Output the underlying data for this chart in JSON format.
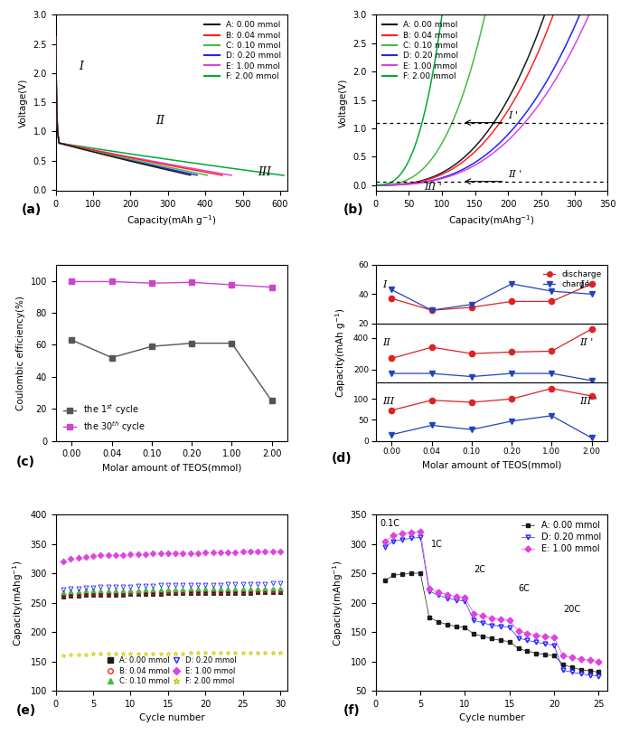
{
  "colors": {
    "A": "#1a1a1a",
    "B": "#ff2222",
    "C": "#44bb44",
    "D": "#2222ff",
    "E": "#dd44dd",
    "F": "#00aa33"
  },
  "legend_labels": [
    "A: 0.00 mmol",
    "B: 0.04 mmol",
    "C: 0.10 mmol",
    "D: 0.20 mmol",
    "E: 1.00 mmol",
    "F: 2.00 mmol"
  ],
  "teos_labels": [
    "0.00",
    "0.04",
    "0.10",
    "0.20",
    "1.00",
    "2.00"
  ],
  "coulombic_1st": [
    63,
    52,
    59,
    61,
    61,
    25
  ],
  "coulombic_30th": [
    99.5,
    99.5,
    98.5,
    99.0,
    97.5,
    96
  ],
  "seg_discharge_I": [
    37,
    29,
    31,
    35,
    35,
    47
  ],
  "seg_charge_I": [
    43,
    29,
    33,
    47,
    42,
    40
  ],
  "seg_discharge_II": [
    270,
    340,
    300,
    310,
    315,
    455
  ],
  "seg_charge_II": [
    175,
    175,
    155,
    175,
    175,
    130
  ],
  "seg_discharge_III": [
    73,
    97,
    92,
    100,
    125,
    107
  ],
  "seg_charge_III": [
    15,
    37,
    27,
    47,
    60,
    7
  ],
  "cycling_cycles": [
    1,
    2,
    3,
    4,
    5,
    6,
    7,
    8,
    9,
    10,
    11,
    12,
    13,
    14,
    15,
    16,
    17,
    18,
    19,
    20,
    21,
    22,
    23,
    24,
    25,
    26,
    27,
    28,
    29,
    30
  ],
  "cycling_A": [
    260,
    262,
    262,
    263,
    263,
    263,
    264,
    264,
    264,
    265,
    265,
    265,
    265,
    265,
    266,
    266,
    266,
    266,
    266,
    266,
    267,
    267,
    267,
    267,
    267,
    267,
    268,
    268,
    268,
    268
  ],
  "cycling_B": [
    263,
    265,
    265,
    266,
    266,
    266,
    267,
    267,
    267,
    268,
    268,
    268,
    268,
    268,
    269,
    269,
    269,
    269,
    269,
    269,
    270,
    270,
    270,
    270,
    270,
    270,
    271,
    271,
    271,
    271
  ],
  "cycling_C": [
    268,
    270,
    270,
    271,
    271,
    271,
    272,
    272,
    272,
    272,
    272,
    273,
    273,
    273,
    273,
    273,
    273,
    274,
    274,
    274,
    274,
    274,
    274,
    274,
    275,
    275,
    275,
    275,
    275,
    275
  ],
  "cycling_D": [
    273,
    275,
    275,
    276,
    276,
    277,
    277,
    278,
    278,
    278,
    279,
    279,
    279,
    280,
    280,
    280,
    280,
    281,
    281,
    281,
    281,
    281,
    282,
    282,
    282,
    282,
    282,
    282,
    283,
    283
  ],
  "cycling_E": [
    320,
    325,
    327,
    328,
    330,
    331,
    331,
    332,
    332,
    333,
    333,
    333,
    334,
    334,
    334,
    334,
    335,
    335,
    335,
    336,
    336,
    336,
    336,
    336,
    337,
    337,
    337,
    337,
    337,
    338
  ],
  "cycling_F": [
    160,
    162,
    162,
    162,
    163,
    163,
    163,
    163,
    163,
    163,
    164,
    164,
    164,
    164,
    164,
    164,
    164,
    165,
    165,
    165,
    165,
    165,
    165,
    165,
    165,
    165,
    165,
    165,
    165,
    165
  ],
  "rate_cycles": [
    1,
    2,
    3,
    4,
    5,
    6,
    7,
    8,
    9,
    10,
    11,
    12,
    13,
    14,
    15,
    16,
    17,
    18,
    19,
    20,
    21,
    22,
    23,
    24,
    25
  ],
  "rate_A": [
    238,
    247,
    249,
    250,
    251,
    175,
    168,
    163,
    160,
    158,
    147,
    143,
    139,
    136,
    134,
    122,
    118,
    114,
    112,
    110,
    95,
    90,
    86,
    84,
    82
  ],
  "rate_D": [
    295,
    305,
    308,
    310,
    312,
    220,
    213,
    208,
    205,
    203,
    170,
    166,
    162,
    160,
    158,
    140,
    136,
    133,
    130,
    128,
    85,
    82,
    79,
    77,
    75
  ],
  "rate_E": [
    305,
    315,
    318,
    320,
    322,
    225,
    218,
    214,
    211,
    209,
    182,
    178,
    174,
    172,
    170,
    152,
    148,
    145,
    143,
    141,
    110,
    107,
    104,
    102,
    100
  ]
}
